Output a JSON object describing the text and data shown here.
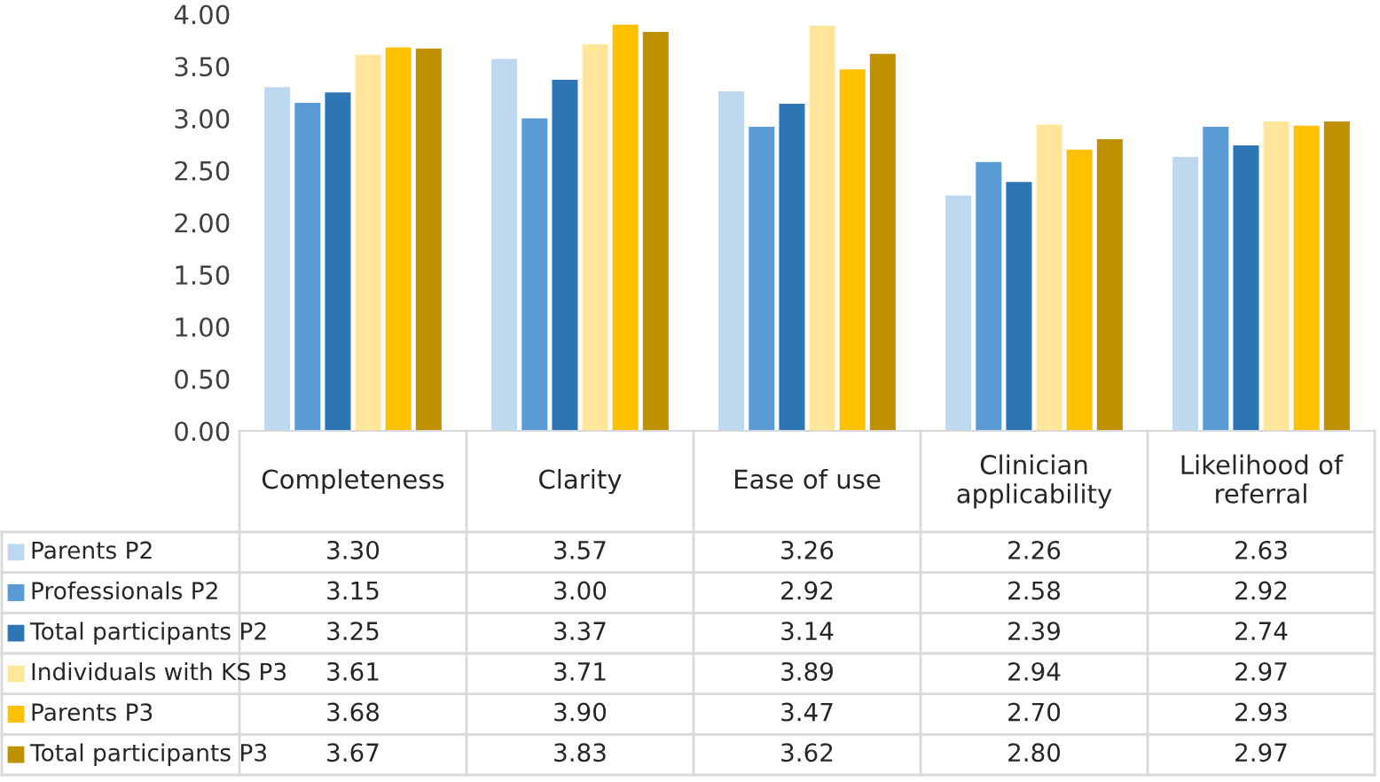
{
  "chart_data": {
    "type": "bar",
    "categories": [
      "Completeness",
      "Clarity",
      "Ease of use",
      "Clinician applicability",
      "Likelihood of referral"
    ],
    "series": [
      {
        "name": "Parents P2",
        "color": "#bdd7ee",
        "values": [
          3.3,
          3.57,
          3.26,
          2.26,
          2.63
        ],
        "value_labels": [
          "3.30",
          "3.57",
          "3.26",
          "2.26",
          "2.63"
        ]
      },
      {
        "name": "Professionals P2",
        "color": "#5b9bd5",
        "values": [
          3.15,
          3.0,
          2.92,
          2.58,
          2.92
        ],
        "value_labels": [
          "3.15",
          "3.00",
          "2.92",
          "2.58",
          "2.92"
        ]
      },
      {
        "name": "Total participants P2",
        "color": "#2e75b6",
        "values": [
          3.25,
          3.37,
          3.14,
          2.39,
          2.74
        ],
        "value_labels": [
          "3.25",
          "3.37",
          "3.14",
          "2.39",
          "2.74"
        ]
      },
      {
        "name": "Individuals with KS P3",
        "color": "#ffe699",
        "values": [
          3.61,
          3.71,
          3.89,
          2.94,
          2.97
        ],
        "value_labels": [
          "3.61",
          "3.71",
          "3.89",
          "2.94",
          "2.97"
        ]
      },
      {
        "name": "Parents P3",
        "color": "#ffc000",
        "values": [
          3.68,
          3.9,
          3.47,
          2.7,
          2.93
        ],
        "value_labels": [
          "3.68",
          "3.90",
          "3.47",
          "2.70",
          "2.93"
        ]
      },
      {
        "name": "Total participants P3",
        "color": "#bf9000",
        "values": [
          3.67,
          3.83,
          3.62,
          2.8,
          2.97
        ],
        "value_labels": [
          "3.67",
          "3.83",
          "3.62",
          "2.80",
          "2.97"
        ]
      }
    ],
    "ylim": [
      0,
      4
    ],
    "yticks": [
      {
        "value": 0,
        "label": "0.00"
      },
      {
        "value": 0.5,
        "label": "0.50"
      },
      {
        "value": 1,
        "label": "1.00"
      },
      {
        "value": 1.5,
        "label": "1.50"
      },
      {
        "value": 2,
        "label": "2.00"
      },
      {
        "value": 2.5,
        "label": "2.50"
      },
      {
        "value": 3,
        "label": "3.00"
      },
      {
        "value": 3.5,
        "label": "3.50"
      },
      {
        "value": 4,
        "label": "4.00"
      }
    ],
    "grid": false,
    "legend": "bottom"
  }
}
